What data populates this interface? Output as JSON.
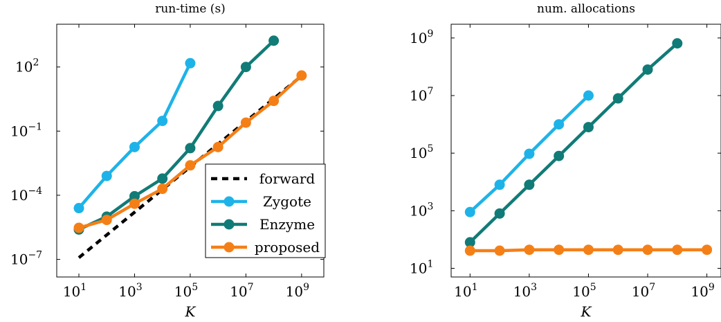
{
  "chart_data": [
    {
      "type": "line",
      "title": "run-time (s)",
      "xlabel": "K",
      "ylabel": "",
      "xscale": "log",
      "yscale": "log",
      "xlim": [
        1.6,
        6300000000.0
      ],
      "ylim": [
        1.5e-08,
        10000.0
      ],
      "x_ticks": [
        {
          "base": "10",
          "exp": "1",
          "value": 10
        },
        {
          "base": "10",
          "exp": "3",
          "value": 1000
        },
        {
          "base": "10",
          "exp": "5",
          "value": 100000
        },
        {
          "base": "10",
          "exp": "7",
          "value": 10000000
        },
        {
          "base": "10",
          "exp": "9",
          "value": 1000000000
        }
      ],
      "y_ticks": [
        {
          "base": "10",
          "exp": "2",
          "value": 100
        },
        {
          "base": "10",
          "exp": "−1",
          "value": 0.1
        },
        {
          "base": "10",
          "exp": "−4",
          "value": 0.0001
        },
        {
          "base": "10",
          "exp": "−7",
          "value": 1e-07
        }
      ],
      "grid": false,
      "legend_position": "bottom-right",
      "series": [
        {
          "name": "forward",
          "color": "#000000",
          "style": "dashed",
          "marker": false,
          "x": [
            10,
            1000000000
          ],
          "y": [
            1.2e-07,
            38
          ]
        },
        {
          "name": "Zygote",
          "color": "#1EB3E8",
          "style": "solid",
          "marker": true,
          "x": [
            10,
            100,
            1000,
            10000,
            100000
          ],
          "y": [
            2.5e-05,
            0.0008,
            0.018,
            0.3,
            150
          ]
        },
        {
          "name": "Enzyme",
          "color": "#117B77",
          "style": "solid",
          "marker": true,
          "x": [
            10,
            100,
            1000,
            10000,
            100000,
            1000000,
            10000000,
            100000000
          ],
          "y": [
            2.5e-06,
            1e-05,
            9e-05,
            0.0006,
            0.016,
            1.5,
            100,
            1700
          ]
        },
        {
          "name": "proposed",
          "color": "#F57F17",
          "style": "solid",
          "marker": true,
          "x": [
            10,
            100,
            1000,
            10000,
            100000,
            1000000,
            10000000,
            100000000,
            1000000000
          ],
          "y": [
            3e-06,
            7e-06,
            4e-05,
            0.0002,
            0.0025,
            0.018,
            0.25,
            2.6,
            40
          ]
        }
      ]
    },
    {
      "type": "line",
      "title": "num. allocations",
      "xlabel": "K",
      "ylabel": "",
      "xscale": "log",
      "yscale": "log",
      "xlim": [
        2.3,
        3000000000.0
      ],
      "ylim": [
        5,
        3000000000.0
      ],
      "x_ticks": [
        {
          "base": "10",
          "exp": "1",
          "value": 10
        },
        {
          "base": "10",
          "exp": "3",
          "value": 1000
        },
        {
          "base": "10",
          "exp": "5",
          "value": 100000
        },
        {
          "base": "10",
          "exp": "7",
          "value": 10000000
        },
        {
          "base": "10",
          "exp": "9",
          "value": 1000000000
        }
      ],
      "y_ticks": [
        {
          "base": "10",
          "exp": "9",
          "value": 1000000000
        },
        {
          "base": "10",
          "exp": "7",
          "value": 10000000
        },
        {
          "base": "10",
          "exp": "5",
          "value": 100000
        },
        {
          "base": "10",
          "exp": "3",
          "value": 1000
        },
        {
          "base": "10",
          "exp": "1",
          "value": 10
        }
      ],
      "grid": false,
      "series": [
        {
          "name": "Zygote",
          "color": "#1EB3E8",
          "style": "solid",
          "marker": true,
          "x": [
            10,
            100,
            1000,
            10000,
            100000
          ],
          "y": [
            900,
            8000,
            95000,
            1000000,
            10000000
          ]
        },
        {
          "name": "Enzyme",
          "color": "#117B77",
          "style": "solid",
          "marker": true,
          "x": [
            10,
            100,
            1000,
            10000,
            100000,
            1000000,
            10000000,
            100000000
          ],
          "y": [
            80,
            800,
            8000,
            80000,
            800000,
            8000000,
            80000000,
            650000000
          ]
        },
        {
          "name": "proposed",
          "color": "#F57F17",
          "style": "solid",
          "marker": true,
          "x": [
            10,
            100,
            1000,
            10000,
            100000,
            1000000,
            10000000,
            100000000,
            1000000000
          ],
          "y": [
            41,
            41,
            44,
            44,
            44,
            44,
            44,
            44,
            44
          ]
        }
      ]
    }
  ]
}
